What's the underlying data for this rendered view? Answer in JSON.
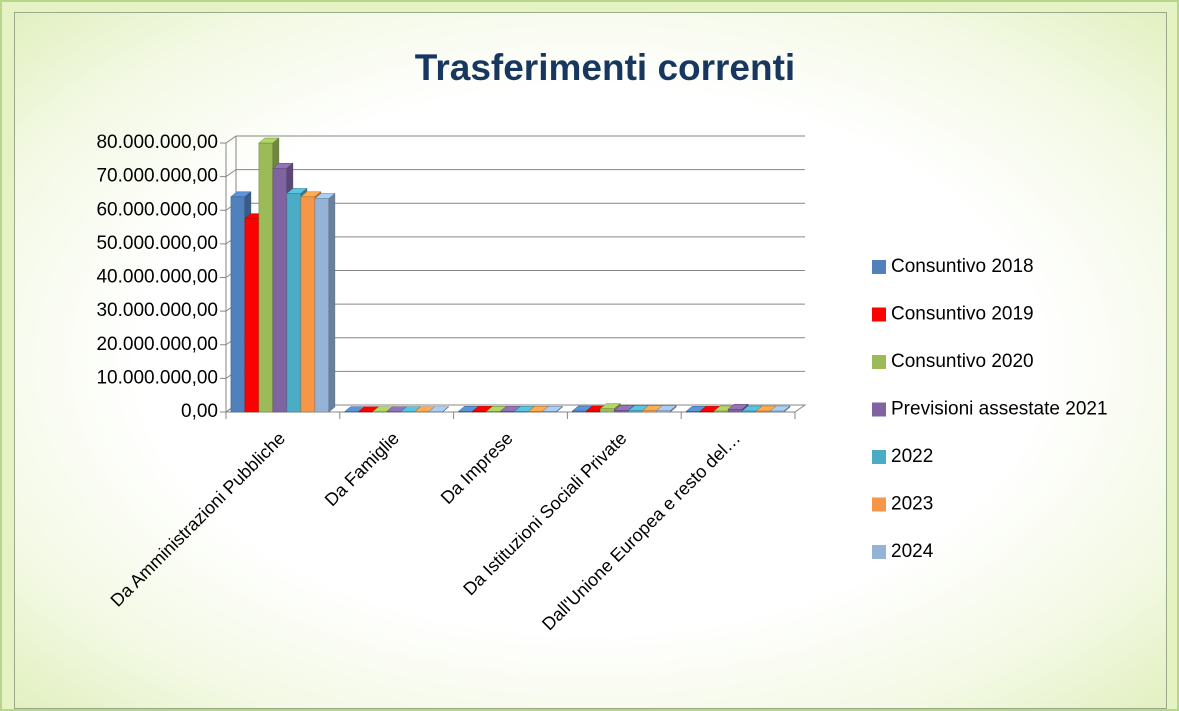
{
  "chart_data": {
    "type": "bar",
    "title": "Trasferimenti correnti",
    "categories": [
      "Da Amministrazioni Pubbliche",
      "Da Famiglie",
      "Da Imprese",
      "Da Istituzioni Sociali Private",
      "Dall'Unione Europea e resto del…"
    ],
    "series": [
      {
        "name": "Consuntivo 2018",
        "color": "#4f81bd",
        "values": [
          64000000,
          100000,
          200000,
          300000,
          200000
        ]
      },
      {
        "name": "Consuntivo 2019",
        "color": "#ff0000",
        "values": [
          57500000,
          100000,
          200000,
          300000,
          200000
        ]
      },
      {
        "name": "Consuntivo 2020",
        "color": "#9bbb59",
        "values": [
          80000000,
          100000,
          200000,
          1000000,
          300000
        ]
      },
      {
        "name": "Previsioni assestate 2021",
        "color": "#8064a2",
        "values": [
          72500000,
          100000,
          200000,
          500000,
          800000
        ]
      },
      {
        "name": "2022",
        "color": "#4bacc6",
        "values": [
          65000000,
          100000,
          200000,
          400000,
          300000
        ]
      },
      {
        "name": "2023",
        "color": "#f79646",
        "values": [
          64000000,
          100000,
          200000,
          400000,
          300000
        ]
      },
      {
        "name": "2024",
        "color": "#95b3d7",
        "values": [
          63500000,
          100000,
          200000,
          400000,
          300000
        ]
      }
    ],
    "ylim": [
      0,
      80000000
    ],
    "yticks": [
      {
        "value": 0,
        "label": "0,00"
      },
      {
        "value": 10000000,
        "label": "10.000.000,00"
      },
      {
        "value": 20000000,
        "label": "20.000.000,00"
      },
      {
        "value": 30000000,
        "label": "30.000.000,00"
      },
      {
        "value": 40000000,
        "label": "40.000.000,00"
      },
      {
        "value": 50000000,
        "label": "50.000.000,00"
      },
      {
        "value": 60000000,
        "label": "60.000.000,00"
      },
      {
        "value": 70000000,
        "label": "70.000.000,00"
      },
      {
        "value": 80000000,
        "label": "80.000.000,00"
      }
    ],
    "grid": true,
    "legend": "right"
  }
}
